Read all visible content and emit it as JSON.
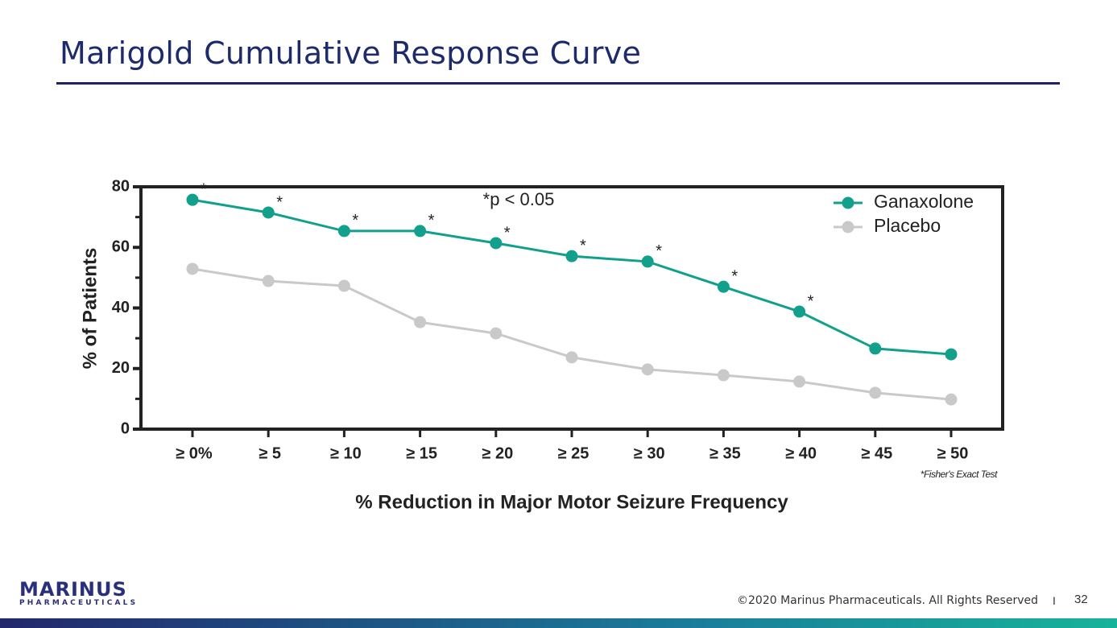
{
  "slide": {
    "title": "Marigold Cumulative Response Curve",
    "logo": "MARINUS",
    "logo_subtitle": "PHARMACEUTICALS",
    "footer": "©2020 Marinus Pharmaceuticals. All Rights Reserved",
    "separator": "I",
    "page_number": "32"
  },
  "chart_data": {
    "type": "line",
    "x_label": "% Reduction in Major Motor Seizure Frequency",
    "y_label": "% of Patients",
    "annotation": "*p < 0.05",
    "note": "*Fisher's Exact Test",
    "categories": [
      "≥ 0%",
      "≥ 5",
      "≥ 10",
      "≥ 15",
      "≥ 20",
      "≥ 25",
      "≥ 30",
      "≥ 35",
      "≥ 40",
      "≥ 45",
      "≥ 50"
    ],
    "series": [
      {
        "name": "Ganaxolone",
        "color": "#12a08c",
        "values": [
          75.7,
          71.5,
          65.4,
          65.4,
          61.4,
          57.1,
          55.3,
          47,
          38.8,
          26.6,
          24.7
        ],
        "significance": [
          "*",
          "*",
          "*",
          "*",
          "*",
          "*",
          "*",
          "*",
          "*",
          null,
          null
        ]
      },
      {
        "name": "Placebo",
        "color": "#c9c9c9",
        "values": [
          52.9,
          48.9,
          47.3,
          35.3,
          31.6,
          23.7,
          19.7,
          17.8,
          15.7,
          12,
          9.8
        ]
      }
    ],
    "ylim": [
      0,
      80
    ],
    "yticks": [
      0,
      20,
      40,
      60,
      80
    ],
    "yminor_ticks": [
      10,
      30,
      50,
      70
    ],
    "legend": "top-right"
  }
}
